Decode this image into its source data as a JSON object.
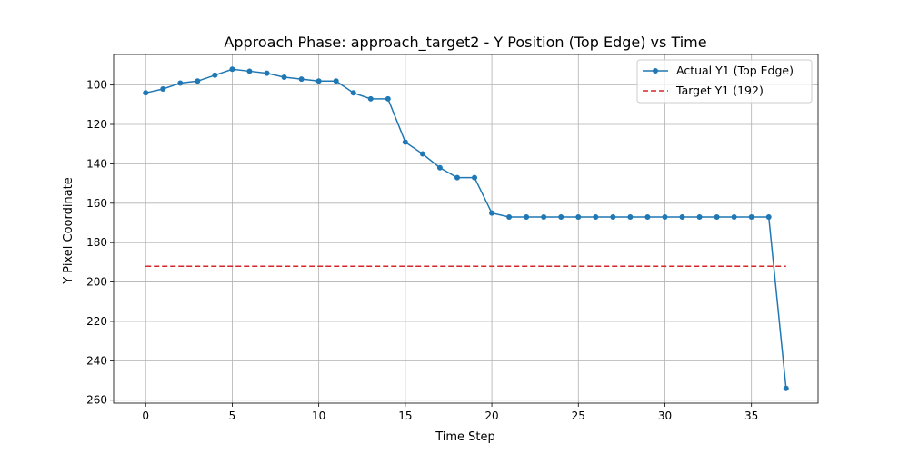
{
  "chart_data": {
    "type": "line",
    "title": "Approach Phase: approach_target2 - Y Position (Top Edge) vs Time",
    "xlabel": "Time Step",
    "ylabel": "Y Pixel Coordinate",
    "xlim": [
      -1.85,
      38.85
    ],
    "ylim": [
      261.5,
      84.5
    ],
    "y_inverted": true,
    "x_ticks": [
      0,
      5,
      10,
      15,
      20,
      25,
      30,
      35
    ],
    "y_ticks": [
      100,
      120,
      140,
      160,
      180,
      200,
      220,
      240,
      260
    ],
    "grid": true,
    "legend_position": "top-right",
    "series": [
      {
        "name": "Actual Y1 (Top Edge)",
        "color": "#1f77b4",
        "style": "solid-with-markers",
        "x": [
          0,
          1,
          2,
          3,
          4,
          5,
          6,
          7,
          8,
          9,
          10,
          11,
          12,
          13,
          14,
          15,
          16,
          17,
          18,
          19,
          20,
          21,
          22,
          23,
          24,
          25,
          26,
          27,
          28,
          29,
          30,
          31,
          32,
          33,
          34,
          35,
          36,
          37
        ],
        "y": [
          104,
          102,
          99,
          98,
          95,
          92,
          93,
          94,
          96,
          97,
          98,
          98,
          104,
          107,
          107,
          129,
          135,
          142,
          147,
          147,
          165,
          167,
          167,
          167,
          167,
          167,
          167,
          167,
          167,
          167,
          167,
          167,
          167,
          167,
          167,
          167,
          167,
          254
        ]
      },
      {
        "name": "Target Y1 (192)",
        "color": "#d62728",
        "style": "dashed",
        "x": [
          0,
          37
        ],
        "y": [
          192,
          192
        ]
      }
    ]
  }
}
